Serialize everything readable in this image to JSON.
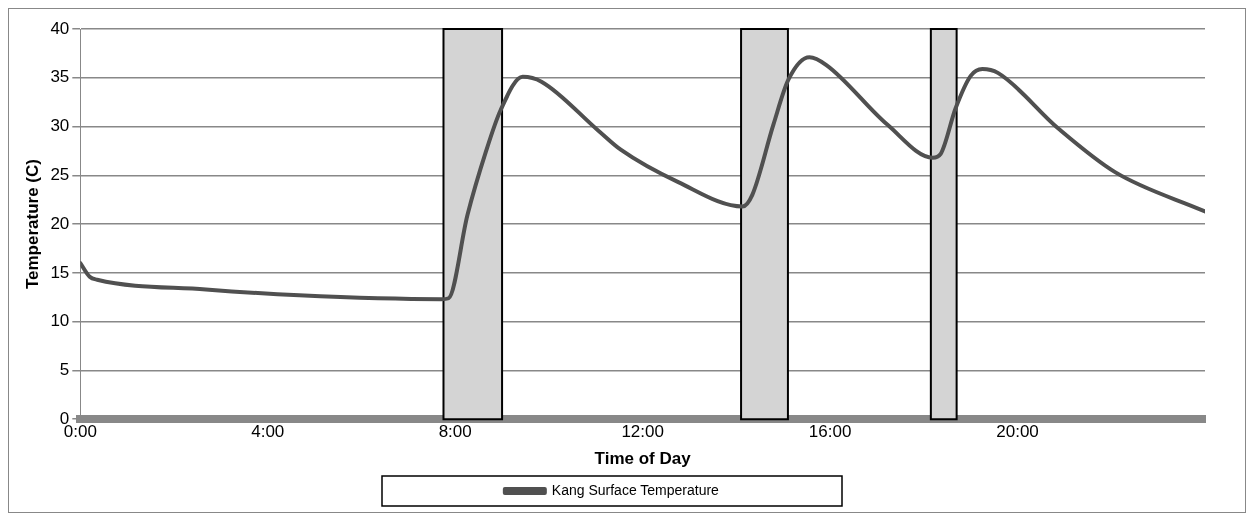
{
  "chart_data": {
    "type": "line",
    "xlabel": "Time of Day",
    "ylabel": "Temperature (C)",
    "x": [
      0,
      0.2,
      0.36,
      2.68,
      4.67,
      7.7,
      7.86,
      8.26,
      8.66,
      8.97,
      9.44,
      9.84,
      11.05,
      11.54,
      12.76,
      14.13,
      14.34,
      14.79,
      15.11,
      15.56,
      15.92,
      17.22,
      18.19,
      18.36,
      18.68,
      19.0,
      19.25,
      19.58,
      20.87,
      22.09,
      24
    ],
    "series": [
      {
        "name": "Kang Surface Temperature",
        "color": "#505050",
        "values": [
          16.0,
          14.6,
          14.3,
          13.3,
          12.7,
          12.3,
          12.4,
          20.9,
          27.5,
          31.7,
          35.1,
          34.6,
          29.6,
          27.6,
          24.3,
          21.8,
          23.0,
          30.2,
          34.8,
          37.1,
          36.3,
          30.2,
          26.8,
          27.2,
          31.9,
          35.2,
          35.9,
          35.5,
          29.8,
          25.3,
          21.3
        ]
      }
    ],
    "xlim": [
      0,
      24
    ],
    "xticks": [
      {
        "value": 0,
        "label": "0:00"
      },
      {
        "value": 4,
        "label": "4:00"
      },
      {
        "value": 8,
        "label": "8:00"
      },
      {
        "value": 12,
        "label": "12:00"
      },
      {
        "value": 16,
        "label": "16:00"
      },
      {
        "value": 20,
        "label": "20:00"
      }
    ],
    "ylim": [
      0,
      40
    ],
    "yticks": [
      0,
      5,
      10,
      15,
      20,
      25,
      30,
      35,
      40
    ],
    "bands": [
      {
        "axis": "x",
        "from": 7.75,
        "to": 9.0,
        "color": "#d4d4d4"
      },
      {
        "axis": "x",
        "from": 14.1,
        "to": 15.1,
        "color": "#d4d4d4"
      },
      {
        "axis": "x",
        "from": 18.15,
        "to": 18.7,
        "color": "#d4d4d4"
      }
    ],
    "grid": "y",
    "legend": "bottom",
    "marker": "none",
    "line_style": "solid"
  }
}
